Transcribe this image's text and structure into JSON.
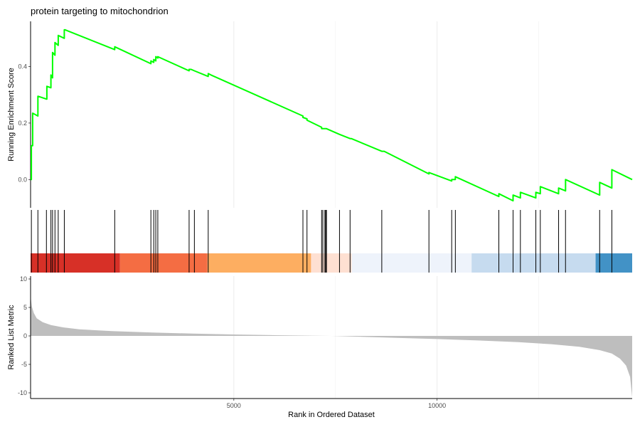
{
  "chart_data": {
    "type": "line",
    "title": "protein targeting to mitochondrion",
    "xlabel": "Rank in Ordered Dataset",
    "xlim": [
      0,
      14800
    ],
    "x_ticks": [
      5000,
      10000
    ],
    "x_tick_labels": [
      "5000",
      "10000"
    ],
    "grid": true,
    "panels": [
      {
        "name": "running-score",
        "ylabel": "Running Enrichment Score",
        "ylim": [
          -0.1,
          0.56
        ],
        "y_ticks": [
          0.0,
          0.2,
          0.4
        ],
        "y_tick_labels": [
          "0.0",
          "0.2",
          "0.4"
        ],
        "line_color": "#00ff00",
        "series": [
          {
            "x": [
              0,
              10,
              20,
              20,
              50,
              50,
              180,
              180,
              390,
              390,
              400,
              400,
              500,
              500,
              540,
              540,
              600,
              600,
              680,
              680,
              830,
              830,
              850,
              2070,
              2070,
              2960,
              2960,
              3030,
              3030,
              3080,
              3080,
              3130,
              3130,
              3900,
              3900,
              3950,
              3950,
              4030,
              4030,
              4370,
              4370,
              4440,
              6700,
              6700,
              6800,
              6800,
              7160,
              7160,
              7190,
              7190,
              7240,
              7240,
              7260,
              7260,
              7280,
              7280,
              7600,
              7600,
              7860,
              7860,
              7890,
              7890,
              8640,
              8640,
              8700,
              9800,
              9800,
              10360,
              10360,
              10450,
              10450,
              11520,
              11520,
              11870,
              11870,
              12050,
              12050,
              12430,
              12430,
              12540,
              12540,
              12990,
              12990,
              13160,
              13160,
              14000,
              14000,
              14300,
              14300,
              14800
            ],
            "y": [
              0.0,
              0.0,
              0.0,
              0.12,
              0.12,
              0.235,
              0.225,
              0.295,
              0.285,
              0.285,
              0.285,
              0.33,
              0.325,
              0.37,
              0.36,
              0.45,
              0.44,
              0.485,
              0.475,
              0.51,
              0.5,
              0.53,
              0.53,
              0.46,
              0.47,
              0.41,
              0.42,
              0.415,
              0.425,
              0.42,
              0.435,
              0.43,
              0.435,
              0.385,
              0.39,
              0.39,
              0.39,
              0.385,
              0.385,
              0.365,
              0.375,
              0.37,
              0.225,
              0.22,
              0.215,
              0.21,
              0.185,
              0.18,
              0.18,
              0.18,
              0.18,
              0.18,
              0.18,
              0.18,
              0.18,
              0.18,
              0.16,
              0.16,
              0.145,
              0.145,
              0.145,
              0.145,
              0.1,
              0.1,
              0.1,
              0.02,
              0.025,
              -0.005,
              0.0,
              0.0,
              0.01,
              -0.06,
              -0.05,
              -0.075,
              -0.055,
              -0.065,
              -0.045,
              -0.065,
              -0.045,
              -0.05,
              -0.025,
              -0.05,
              -0.03,
              -0.04,
              0.0,
              -0.055,
              -0.01,
              -0.03,
              0.035,
              0.0
            ]
          }
        ]
      },
      {
        "name": "hits",
        "hit_positions": [
          20,
          180,
          390,
          500,
          540,
          600,
          680,
          830,
          2070,
          2960,
          3030,
          3080,
          3130,
          3900,
          4030,
          4370,
          6700,
          6800,
          7160,
          7190,
          7240,
          7260,
          7280,
          7600,
          7860,
          8640,
          9800,
          10360,
          10450,
          11520,
          11870,
          12050,
          12430,
          12540,
          12990,
          13160,
          14000,
          14300
        ],
        "color_bands": [
          {
            "from": 0,
            "to": 2200,
            "color": "#d73027"
          },
          {
            "from": 2200,
            "to": 4350,
            "color": "#f46d43"
          },
          {
            "from": 4350,
            "to": 6900,
            "color": "#fdae61"
          },
          {
            "from": 6900,
            "to": 7900,
            "color": "#fee0d2"
          },
          {
            "from": 7900,
            "to": 10850,
            "color": "#eef3fb"
          },
          {
            "from": 10850,
            "to": 13900,
            "color": "#c6dbef"
          },
          {
            "from": 13900,
            "to": 14800,
            "color": "#4292c6"
          }
        ]
      },
      {
        "name": "ranked-metric",
        "ylabel": "Ranked List Metric",
        "ylim": [
          -11,
          10.5
        ],
        "y_ticks": [
          10,
          5,
          0,
          -5,
          -10
        ],
        "y_tick_labels": [
          "10",
          "5",
          "0",
          "-5",
          "-10"
        ],
        "fill_color": "#bebebe",
        "series": [
          {
            "x": [
              0,
              30,
              80,
              150,
              300,
              500,
              800,
              1200,
              2000,
              3000,
              4000,
              5000,
              6000,
              7000,
              7400,
              8000,
              9000,
              10000,
              11000,
              12000,
              12800,
              13500,
              14000,
              14300,
              14500,
              14650,
              14750,
              14800
            ],
            "y": [
              7,
              5.2,
              4,
              3.1,
              2.4,
              1.9,
              1.5,
              1.15,
              0.85,
              0.6,
              0.4,
              0.25,
              0.12,
              0.02,
              0.0,
              -0.12,
              -0.35,
              -0.55,
              -0.8,
              -1.1,
              -1.45,
              -1.9,
              -2.5,
              -3.1,
              -4.0,
              -5.2,
              -7.2,
              -10.8
            ]
          }
        ]
      }
    ]
  }
}
